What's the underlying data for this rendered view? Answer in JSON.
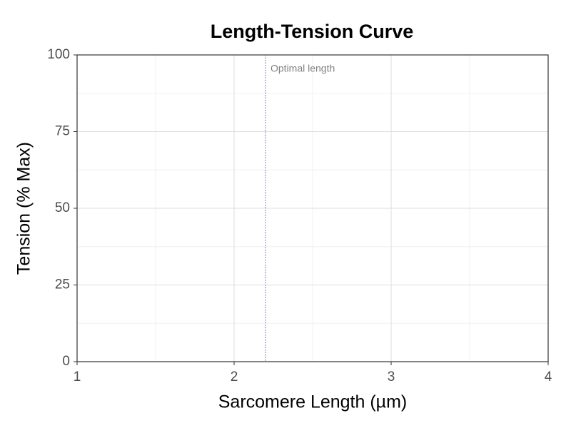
{
  "chart_data": {
    "type": "line",
    "title": "Length-Tension Curve",
    "x_label": "Sarcomere Length (µm)",
    "y_label": "Tension (% Max)",
    "xlim": [
      1,
      4
    ],
    "xticks": [
      1,
      2,
      3,
      4
    ],
    "ylim": [
      0,
      100
    ],
    "yticks": [
      0,
      25,
      50,
      75,
      100
    ],
    "grid": true,
    "vline": {
      "x": 2.2,
      "label": "Optimal length",
      "color": "#6b6baa"
    }
  }
}
